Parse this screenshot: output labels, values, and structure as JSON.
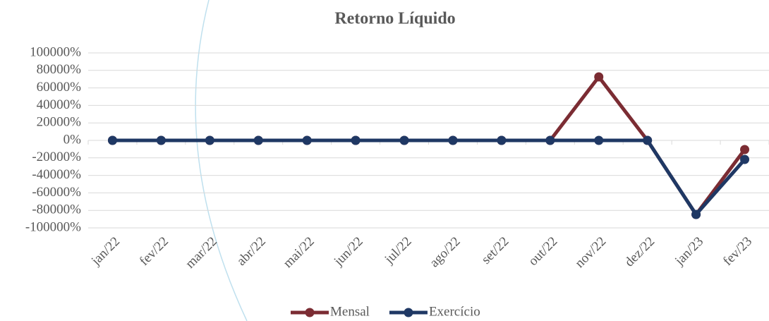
{
  "chart_data": {
    "type": "line",
    "title": "Retorno Líquido",
    "categories": [
      "jan/22",
      "fev/22",
      "mar/22",
      "abr/22",
      "mai/22",
      "jun/22",
      "jul/22",
      "ago/22",
      "set/22",
      "out/22",
      "nov/22",
      "dez/22",
      "jan/23",
      "fev/23"
    ],
    "series": [
      {
        "name": "Mensal",
        "color": "#7b2c33",
        "values": [
          0,
          0,
          0,
          0,
          0,
          0,
          0,
          0,
          0,
          0,
          72600,
          0,
          -84700,
          -10500
        ]
      },
      {
        "name": "Exercício",
        "color": "#1f3864",
        "values": [
          0,
          0,
          0,
          0,
          0,
          0,
          0,
          0,
          0,
          0,
          0,
          0,
          -84700,
          -21800
        ]
      }
    ],
    "ylim": [
      -100000,
      100000
    ],
    "yticks": [
      {
        "value": -100000,
        "label": "-100000%"
      },
      {
        "value": -80000,
        "label": "-80000%"
      },
      {
        "value": -60000,
        "label": "-60000%"
      },
      {
        "value": -40000,
        "label": "-40000%"
      },
      {
        "value": -20000,
        "label": "-20000%"
      },
      {
        "value": 0,
        "label": "0%"
      },
      {
        "value": 20000,
        "label": "20000%"
      },
      {
        "value": 40000,
        "label": "40000%"
      },
      {
        "value": 60000,
        "label": "60000%"
      },
      {
        "value": 80000,
        "label": "80000%"
      },
      {
        "value": 100000,
        "label": "100000%"
      }
    ],
    "grid": true,
    "legend": "bottom"
  }
}
